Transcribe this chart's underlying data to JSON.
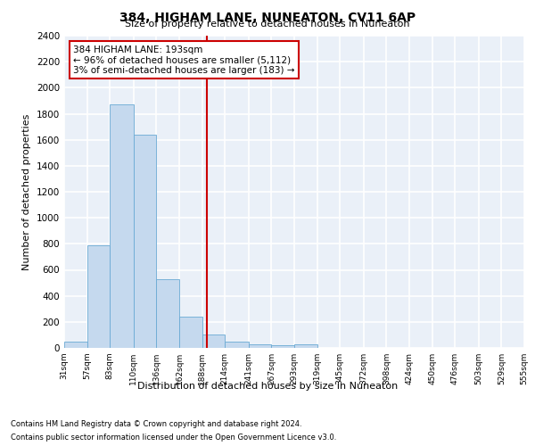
{
  "title": "384, HIGHAM LANE, NUNEATON, CV11 6AP",
  "subtitle": "Size of property relative to detached houses in Nuneaton",
  "xlabel": "Distribution of detached houses by size in Nuneaton",
  "ylabel": "Number of detached properties",
  "footnote1": "Contains HM Land Registry data © Crown copyright and database right 2024.",
  "footnote2": "Contains public sector information licensed under the Open Government Licence v3.0.",
  "annotation_line1": "384 HIGHAM LANE: 193sqm",
  "annotation_line2": "← 96% of detached houses are smaller (5,112)",
  "annotation_line3": "3% of semi-detached houses are larger (183) →",
  "property_size": 193,
  "bar_edges": [
    31,
    57,
    83,
    110,
    136,
    162,
    188,
    214,
    241,
    267,
    293,
    319,
    345,
    372,
    398,
    424,
    450,
    476,
    503,
    529,
    555
  ],
  "bar_heights": [
    50,
    790,
    1870,
    1640,
    530,
    240,
    100,
    50,
    25,
    20,
    25,
    0,
    0,
    0,
    0,
    0,
    0,
    0,
    0,
    0
  ],
  "bar_color": "#c5d9ee",
  "bar_edgecolor": "#6aaad4",
  "vline_color": "#cc0000",
  "vline_x": 193,
  "annotation_box_color": "#cc0000",
  "background_color": "#eaf0f8",
  "grid_color": "#ffffff",
  "ylim": [
    0,
    2400
  ],
  "yticks": [
    0,
    200,
    400,
    600,
    800,
    1000,
    1200,
    1400,
    1600,
    1800,
    2000,
    2200,
    2400
  ]
}
